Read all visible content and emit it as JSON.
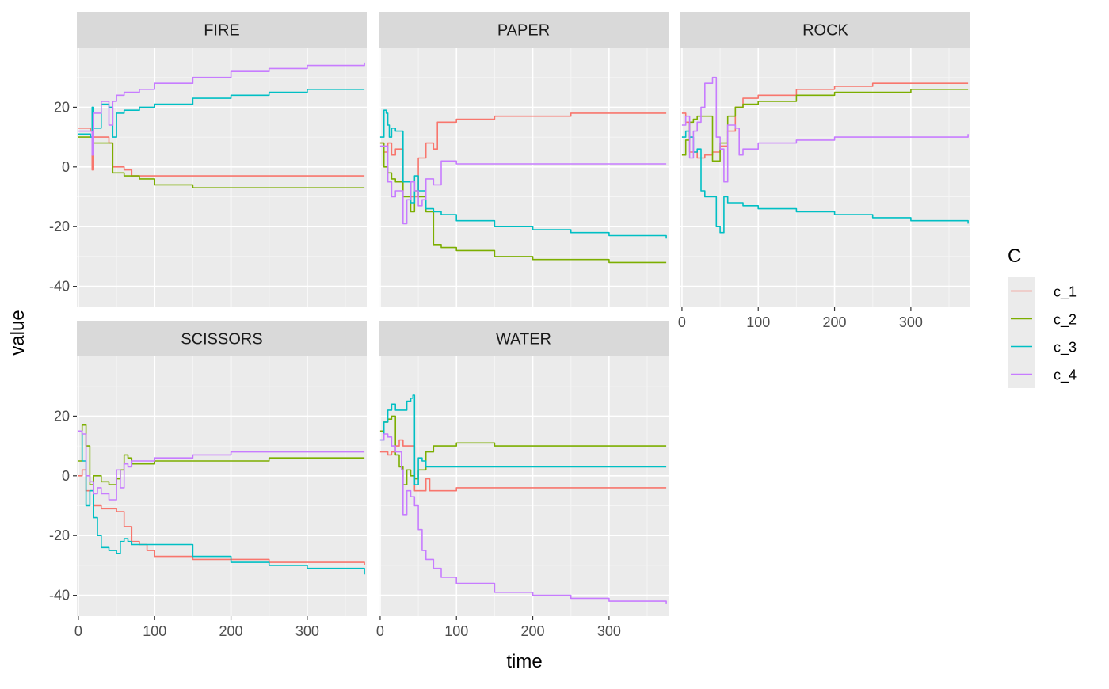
{
  "chart_data": {
    "type": "line",
    "facet_type": "wrap",
    "xlabel": "time",
    "ylabel": "value",
    "xlim": [
      -2,
      378
    ],
    "ylim": [
      -47,
      40
    ],
    "x_ticks": [
      0,
      100,
      200,
      300
    ],
    "y_ticks": [
      -40,
      -20,
      0,
      20
    ],
    "grid": true,
    "legend": {
      "title": "C",
      "position": "right",
      "items": [
        "c_1",
        "c_2",
        "c_3",
        "c_4"
      ]
    },
    "series_colors": {
      "c_1": "#F8766D",
      "c_2": "#7CAE00",
      "c_3": "#00BFC4",
      "c_4": "#C77CFF"
    },
    "panels": [
      {
        "label": "FIRE",
        "series": [
          {
            "name": "c_1",
            "x": [
              0,
              16,
              18,
              20,
              40,
              45,
              60,
              70,
              80,
              100,
              150,
              200,
              250,
              300,
              375
            ],
            "y": [
              13,
              12,
              -1,
              10,
              8,
              0,
              -1,
              -3,
              -3,
              -3,
              -3,
              -3,
              -3,
              -3,
              -3
            ]
          },
          {
            "name": "c_2",
            "x": [
              0,
              18,
              20,
              40,
              45,
              60,
              80,
              100,
              150,
              200,
              250,
              300,
              375
            ],
            "y": [
              10,
              8,
              8,
              8,
              -2,
              -3,
              -4,
              -6,
              -7,
              -7,
              -7,
              -7,
              -7
            ]
          },
          {
            "name": "c_3",
            "x": [
              0,
              16,
              18,
              20,
              30,
              40,
              45,
              50,
              60,
              70,
              80,
              100,
              150,
              200,
              250,
              300,
              375
            ],
            "y": [
              11,
              10,
              20,
              13,
              21,
              20,
              10,
              18,
              19,
              19,
              20,
              21,
              23,
              24,
              25,
              26,
              26
            ]
          },
          {
            "name": "c_4",
            "x": [
              0,
              16,
              18,
              20,
              30,
              35,
              40,
              45,
              50,
              60,
              80,
              100,
              150,
              200,
              250,
              300,
              375
            ],
            "y": [
              12,
              12,
              4,
              18,
              22,
              22,
              14,
              22,
              24,
              25,
              26,
              28,
              30,
              32,
              33,
              34,
              35
            ]
          }
        ]
      },
      {
        "label": "PAPER",
        "series": [
          {
            "name": "c_1",
            "x": [
              0,
              5,
              10,
              15,
              20,
              30,
              40,
              50,
              60,
              70,
              75,
              80,
              100,
              150,
              200,
              250,
              300,
              375
            ],
            "y": [
              8,
              5,
              8,
              4,
              6,
              -5,
              -10,
              3,
              8,
              6,
              15,
              15,
              16,
              17,
              17,
              18,
              18,
              18
            ]
          },
          {
            "name": "c_2",
            "x": [
              0,
              5,
              10,
              15,
              20,
              30,
              40,
              45,
              50,
              60,
              70,
              80,
              100,
              150,
              200,
              250,
              300,
              375
            ],
            "y": [
              8,
              0,
              -2,
              -4,
              -5,
              -10,
              -15,
              -8,
              -10,
              -15,
              -26,
              -27,
              -28,
              -30,
              -31,
              -31,
              -32,
              -32
            ]
          },
          {
            "name": "c_3",
            "x": [
              0,
              5,
              8,
              10,
              12,
              15,
              20,
              30,
              40,
              45,
              50,
              60,
              70,
              80,
              100,
              150,
              200,
              250,
              300,
              375
            ],
            "y": [
              10,
              19,
              18,
              14,
              10,
              13,
              12,
              -5,
              -12,
              -3,
              -8,
              -14,
              -15,
              -16,
              -18,
              -20,
              -21,
              -22,
              -23,
              -24
            ]
          },
          {
            "name": "c_4",
            "x": [
              0,
              10,
              15,
              20,
              30,
              35,
              40,
              45,
              50,
              55,
              60,
              70,
              80,
              100,
              150,
              200,
              250,
              300,
              375
            ],
            "y": [
              7,
              -5,
              -10,
              -8,
              -19,
              -11,
              -5,
              -8,
              -13,
              -11,
              -4,
              -6,
              2,
              1,
              1,
              1,
              1,
              1,
              1
            ]
          }
        ]
      },
      {
        "label": "ROCK",
        "series": [
          {
            "name": "c_1",
            "x": [
              0,
              5,
              10,
              20,
              30,
              40,
              50,
              60,
              70,
              80,
              100,
              150,
              200,
              250,
              300,
              375
            ],
            "y": [
              18,
              15,
              5,
              3,
              4,
              5,
              7,
              12,
              20,
              23,
              24,
              26,
              27,
              28,
              28,
              28
            ]
          },
          {
            "name": "c_2",
            "x": [
              0,
              5,
              10,
              15,
              20,
              30,
              40,
              50,
              55,
              60,
              70,
              80,
              100,
              150,
              200,
              250,
              300,
              375
            ],
            "y": [
              4,
              9,
              15,
              16,
              17,
              17,
              2,
              8,
              8,
              17,
              20,
              21,
              22,
              24,
              25,
              25,
              26,
              26
            ]
          },
          {
            "name": "c_3",
            "x": [
              0,
              5,
              10,
              15,
              20,
              25,
              30,
              40,
              45,
              50,
              55,
              60,
              70,
              80,
              100,
              150,
              200,
              250,
              300,
              375
            ],
            "y": [
              10,
              12,
              10,
              5,
              6,
              -8,
              -10,
              -10,
              -20,
              -22,
              -10,
              -12,
              -12,
              -13,
              -14,
              -15,
              -16,
              -17,
              -18,
              -19
            ]
          },
          {
            "name": "c_4",
            "x": [
              0,
              5,
              10,
              15,
              20,
              25,
              30,
              40,
              45,
              50,
              55,
              60,
              70,
              75,
              80,
              100,
              150,
              200,
              250,
              300,
              375
            ],
            "y": [
              14,
              17,
              3,
              12,
              15,
              20,
              28,
              30,
              10,
              6,
              -5,
              14,
              13,
              4,
              6,
              8,
              9,
              10,
              10,
              10,
              11
            ]
          }
        ]
      },
      {
        "label": "SCISSORS",
        "series": [
          {
            "name": "c_1",
            "x": [
              0,
              5,
              10,
              15,
              20,
              30,
              40,
              50,
              55,
              60,
              70,
              80,
              90,
              100,
              150,
              200,
              250,
              300,
              375
            ],
            "y": [
              0,
              2,
              -5,
              -5,
              -10,
              -11,
              -11,
              -12,
              -12,
              -17,
              -22,
              -23,
              -25,
              -27,
              -28,
              -28,
              -29,
              -29,
              -30
            ]
          },
          {
            "name": "c_2",
            "x": [
              0,
              5,
              10,
              15,
              20,
              30,
              40,
              45,
              50,
              55,
              60,
              65,
              70,
              80,
              100,
              150,
              200,
              250,
              300,
              375
            ],
            "y": [
              5,
              17,
              10,
              -3,
              0,
              -2,
              -3,
              -3,
              -1,
              2,
              7,
              6,
              4,
              4,
              5,
              5,
              5,
              6,
              6,
              6
            ]
          },
          {
            "name": "c_3",
            "x": [
              0,
              5,
              10,
              15,
              20,
              25,
              30,
              40,
              50,
              55,
              60,
              65,
              70,
              80,
              100,
              150,
              200,
              250,
              300,
              375
            ],
            "y": [
              15,
              5,
              -10,
              -5,
              -14,
              -20,
              -24,
              -25,
              -26,
              -22,
              -21,
              -22,
              -23,
              -23,
              -23,
              -27,
              -29,
              -30,
              -31,
              -33
            ]
          },
          {
            "name": "c_4",
            "x": [
              0,
              5,
              10,
              15,
              20,
              25,
              30,
              40,
              45,
              50,
              55,
              60,
              65,
              70,
              80,
              100,
              150,
              200,
              250,
              300,
              375
            ],
            "y": [
              15,
              14,
              0,
              -2,
              -6,
              -4,
              -6,
              -8,
              -8,
              2,
              -4,
              4,
              3,
              5,
              5,
              6,
              7,
              8,
              8,
              8,
              8
            ]
          }
        ]
      },
      {
        "label": "WATER",
        "series": [
          {
            "name": "c_1",
            "x": [
              0,
              5,
              10,
              15,
              20,
              25,
              30,
              40,
              45,
              50,
              55,
              60,
              65,
              70,
              80,
              100,
              150,
              200,
              250,
              300,
              375
            ],
            "y": [
              8,
              8,
              7,
              8,
              10,
              12,
              10,
              10,
              -5,
              -5,
              -5,
              -1,
              -5,
              -5,
              -5,
              -4,
              -4,
              -4,
              -4,
              -4,
              -4
            ]
          },
          {
            "name": "c_2",
            "x": [
              0,
              5,
              10,
              15,
              20,
              25,
              30,
              35,
              40,
              45,
              50,
              60,
              70,
              80,
              100,
              120,
              150,
              200,
              250,
              300,
              375
            ],
            "y": [
              15,
              18,
              19,
              20,
              7,
              3,
              -3,
              2,
              0,
              -1,
              2,
              8,
              10,
              10,
              11,
              11,
              10,
              10,
              10,
              10,
              10
            ]
          },
          {
            "name": "c_3",
            "x": [
              0,
              5,
              10,
              15,
              20,
              25,
              30,
              35,
              40,
              43,
              45,
              50,
              55,
              60,
              80,
              100,
              150,
              200,
              250,
              300,
              375
            ],
            "y": [
              12,
              18,
              22,
              24,
              22,
              22,
              22,
              25,
              26,
              27,
              -3,
              6,
              5,
              3,
              3,
              3,
              3,
              3,
              3,
              3,
              3
            ]
          },
          {
            "name": "c_4",
            "x": [
              0,
              5,
              10,
              15,
              20,
              25,
              28,
              30,
              35,
              40,
              45,
              50,
              55,
              60,
              70,
              80,
              100,
              150,
              200,
              250,
              300,
              375
            ],
            "y": [
              12,
              14,
              13,
              10,
              8,
              8,
              2,
              -13,
              -5,
              -7,
              -10,
              -18,
              -25,
              -28,
              -31,
              -34,
              -36,
              -39,
              -40,
              -41,
              -42,
              -43
            ]
          }
        ]
      }
    ]
  }
}
